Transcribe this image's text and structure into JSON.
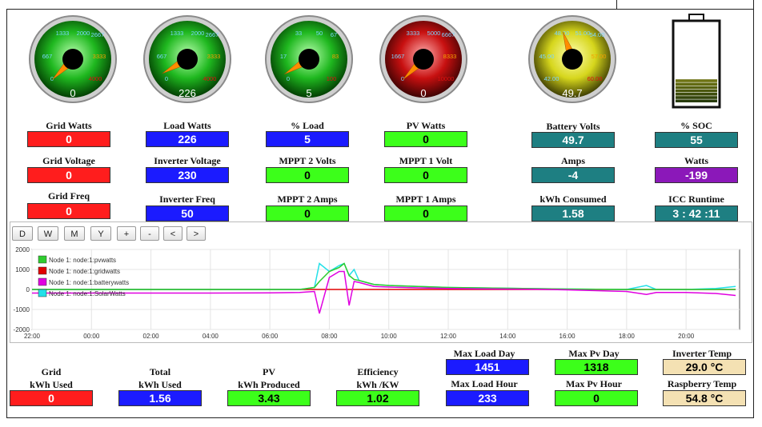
{
  "gauges": [
    {
      "value": "0",
      "ticks": [
        "1333",
        "2000",
        "2667",
        "667",
        "3333",
        "0",
        "4000"
      ],
      "type": "green",
      "frac": 0.0
    },
    {
      "value": "226",
      "ticks": [
        "1333",
        "2000",
        "2667",
        "667",
        "3333",
        "0",
        "4000"
      ],
      "type": "green",
      "frac": 0.056
    },
    {
      "value": "5",
      "ticks": [
        "33",
        "50",
        "67",
        "17",
        "83",
        "0",
        "100"
      ],
      "type": "green",
      "frac": 0.05
    },
    {
      "value": "0",
      "ticks": [
        "3333",
        "5000",
        "6667",
        "1667",
        "8333",
        "0",
        "10000"
      ],
      "type": "red",
      "frac": 0.0
    },
    {
      "value": "49.7",
      "ticks": [
        "48.00",
        "51.00",
        "54.00",
        "45.00",
        "57.00",
        "42.00",
        "60.00"
      ],
      "type": "yellow",
      "frac": 0.43
    }
  ],
  "battery": {
    "soc": 55
  },
  "fields": {
    "grid_watts": {
      "label": "Grid Watts",
      "value": "0"
    },
    "load_watts": {
      "label": "Load Watts",
      "value": "226"
    },
    "pct_load": {
      "label": "% Load",
      "value": "5"
    },
    "pv_watts": {
      "label": "PV Watts",
      "value": "0"
    },
    "battery_volts": {
      "label": "Battery Volts",
      "value": "49.7"
    },
    "soc": {
      "label": "% SOC",
      "value": "55"
    },
    "grid_voltage": {
      "label": "Grid Voltage",
      "value": "0"
    },
    "inverter_voltage": {
      "label": "Inverter Voltage",
      "value": "230"
    },
    "mppt2_volts": {
      "label": "MPPT 2 Volts",
      "value": "0"
    },
    "mppt1_volt": {
      "label": "MPPT 1 Volt",
      "value": "0"
    },
    "amps": {
      "label": "Amps",
      "value": "-4"
    },
    "watts": {
      "label": "Watts",
      "value": "-199"
    },
    "grid_freq": {
      "label": "Grid Freq",
      "value": "0"
    },
    "inverter_freq": {
      "label": "Inverter Freq",
      "value": "50"
    },
    "mppt2_amps": {
      "label": "MPPT 2 Amps",
      "value": "0"
    },
    "mppt1_amps": {
      "label": "MPPT 1 Amps",
      "value": "0"
    },
    "kwh_consumed": {
      "label": "kWh Consumed",
      "value": "1.58"
    },
    "icc_runtime": {
      "label": "ICC Runtime",
      "value": "3 : 42 :11"
    },
    "grid_kwh": {
      "label1": "Grid",
      "label2": "kWh Used",
      "value": "0"
    },
    "total_kwh": {
      "label1": "Total",
      "label2": "kWh Used",
      "value": "1.56"
    },
    "pv_kwh": {
      "label1": "PV",
      "label2": "kWh Produced",
      "value": "3.43"
    },
    "efficiency": {
      "label1": "Efficiency",
      "label2": "kWh /KW",
      "value": "1.02"
    },
    "max_load_day": {
      "label": "Max Load Day",
      "value": "1451"
    },
    "max_load_hour": {
      "label": "Max Load Hour",
      "value": "233"
    },
    "max_pv_day": {
      "label": "Max Pv Day",
      "value": "1318"
    },
    "max_pv_hour": {
      "label": "Max Pv Hour",
      "value": "0"
    },
    "inverter_temp": {
      "label": "Inverter Temp",
      "value": "29.0 °C"
    },
    "raspberry_temp": {
      "label": "Raspberry Temp",
      "value": "54.8 °C"
    }
  },
  "chart_buttons": [
    "D",
    "W",
    "M",
    "Y",
    "+",
    "-",
    "<",
    ">"
  ],
  "chart_data": {
    "type": "line",
    "ylim": [
      -2000,
      2000
    ],
    "yticks": [
      "2000",
      "1000",
      "0",
      "-1000",
      "-2000"
    ],
    "xticks": [
      "22:00",
      "00:00",
      "02:00",
      "04:00",
      "06:00",
      "08:00",
      "10:00",
      "12:00",
      "14:00",
      "16:00",
      "18:00",
      "20:00"
    ],
    "x": [
      "22:00",
      "00:00",
      "02:00",
      "04:00",
      "06:00",
      "07:00",
      "07:30",
      "07:40",
      "08:00",
      "08:20",
      "08:30",
      "08:40",
      "08:50",
      "09:00",
      "09:30",
      "10:00",
      "11:00",
      "12:00",
      "13:00",
      "14:00",
      "15:00",
      "16:00",
      "17:00",
      "18:00",
      "18:40",
      "19:00",
      "20:00",
      "21:00",
      "21:40"
    ],
    "series": [
      {
        "name": "Node 1: node:1:pvwatts",
        "color": "#2ecc2e",
        "values": [
          0,
          0,
          0,
          0,
          0,
          0,
          100,
          400,
          900,
          1100,
          1300,
          700,
          500,
          450,
          250,
          200,
          150,
          100,
          80,
          60,
          40,
          20,
          10,
          0,
          0,
          0,
          0,
          0,
          0
        ]
      },
      {
        "name": "Node 1: node:1:gridwatts",
        "color": "#e00000",
        "values": [
          0,
          0,
          0,
          0,
          0,
          0,
          0,
          0,
          0,
          0,
          0,
          0,
          0,
          0,
          0,
          0,
          0,
          0,
          0,
          0,
          0,
          0,
          0,
          0,
          0,
          0,
          0,
          0,
          0
        ]
      },
      {
        "name": "Node 1: node:1:batterywatts",
        "color": "#e000e0",
        "values": [
          -180,
          -180,
          -180,
          -180,
          -170,
          -150,
          -100,
          -1200,
          600,
          900,
          900,
          -800,
          400,
          350,
          150,
          120,
          80,
          50,
          30,
          20,
          10,
          -20,
          -60,
          -100,
          -250,
          -150,
          -150,
          -200,
          -300
        ]
      },
      {
        "name": "Node 1: node:1:SolarWatts",
        "color": "#22e0e8",
        "values": [
          0,
          0,
          0,
          0,
          0,
          0,
          100,
          1300,
          900,
          1200,
          1300,
          700,
          1000,
          450,
          250,
          200,
          150,
          100,
          80,
          60,
          40,
          20,
          10,
          0,
          200,
          0,
          0,
          50,
          150
        ]
      }
    ]
  }
}
